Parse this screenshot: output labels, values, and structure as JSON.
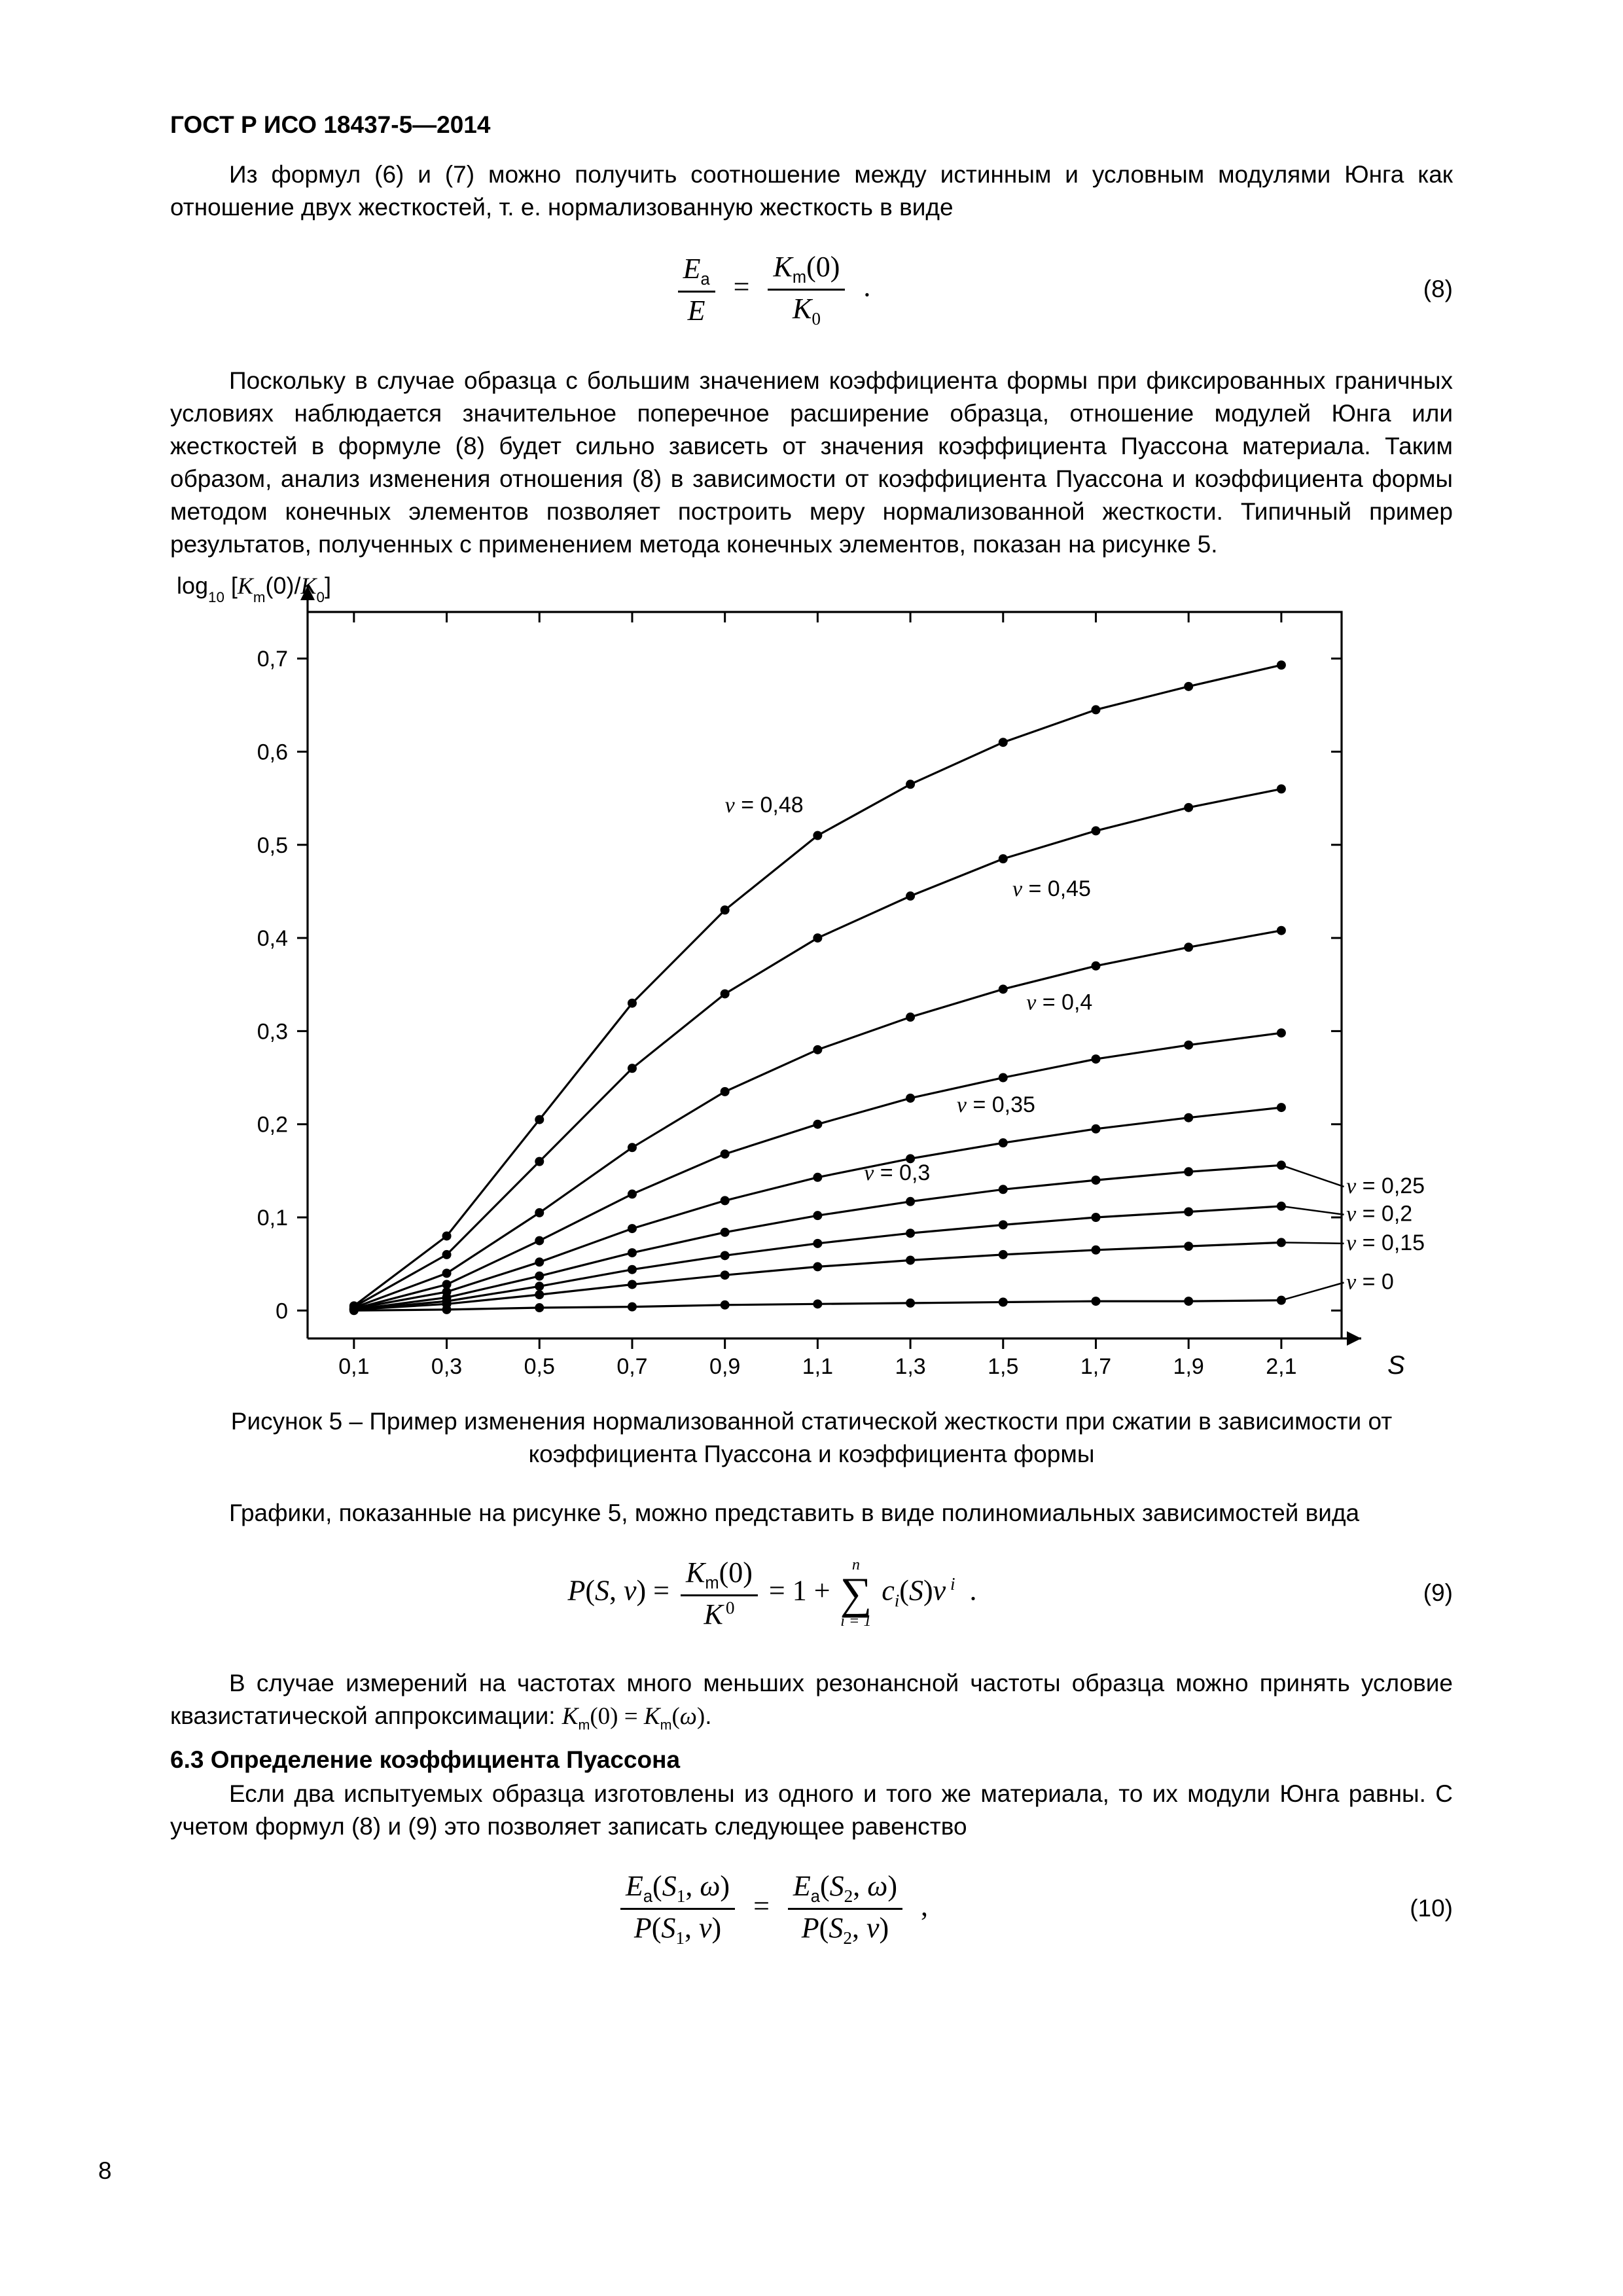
{
  "doc_id": "ГОСТ Р ИСО 18437-5—2014",
  "page_number": "8",
  "paragraphs": {
    "p1": "Из формул (6) и (7) можно получить соотношение между истинным и условным модулями Юнга как отношение двух жесткостей, т. е. нормализованную жесткость в виде",
    "p2": "Поскольку в случае образца с большим значением коэффициента формы при фиксированных граничных условиях наблюдается значительное поперечное расширение образца, отношение модулей Юнга или жесткостей в формуле (8) будет сильно зависеть от значения коэффициента Пуассона материала. Таким образом, анализ изменения отношения (8) в зависимости от коэффициента Пуассона и коэффициента формы методом конечных элементов позволяет построить меру нормализованной жесткости. Типичный пример результатов, полученных с применением метода конечных элементов, показан на рисунке 5.",
    "p3": "Графики, показанные на рисунке 5, можно представить в виде полиномиальных зависимостей вида",
    "p4a": "В случае измерений на частотах много меньших резонансной частоты образца можно принять условие квазистатической аппроксимации: ",
    "p4b": ".",
    "p5": "Если два испытуемых образца изготовлены из одного и того же материала, то их модули Юнга равны. С учетом формул (8) и (9) это позволяет записать следующее равенство"
  },
  "section_63": "6.3 Определение коэффициента Пуассона",
  "equations": {
    "eq8_num": "(8)",
    "eq9_num": "(9)",
    "eq10_num": "(10)"
  },
  "figure": {
    "caption": "Рисунок 5 – Пример изменения нормализованной статической жесткости при сжатии в зависимости от коэффициента Пуассона и коэффициента формы",
    "y_axis_label": "log₁₀ [Kₘ(0)/K₀]",
    "x_axis_label": "S",
    "colors": {
      "bg": "#ffffff",
      "axis": "#000000",
      "line": "#000000",
      "text": "#000000"
    },
    "font_size_ticks": 34,
    "font_size_series": 34,
    "font_size_axis_label": 36,
    "marker_radius": 7,
    "plot": {
      "x_min": 0.0,
      "x_max": 2.23,
      "y_min": -0.03,
      "y_max": 0.75,
      "x_ticks": [
        0.1,
        0.3,
        0.5,
        0.7,
        0.9,
        1.1,
        1.3,
        1.5,
        1.7,
        1.9,
        2.1
      ],
      "y_ticks": [
        0,
        0.1,
        0.2,
        0.3,
        0.4,
        0.5,
        0.6,
        0.7
      ],
      "x_tick_labels": [
        "0,1",
        "0,3",
        "0,5",
        "0,7",
        "0,9",
        "1,1",
        "1,3",
        "1,5",
        "1,7",
        "1,9",
        "2,1"
      ],
      "y_tick_labels": [
        "0",
        "0,1",
        "0,2",
        "0,3",
        "0,4",
        "0,5",
        "0,6",
        "0,7"
      ]
    },
    "series": [
      {
        "nu": "ν = 0,48",
        "label_at": [
          0.9,
          0.535
        ],
        "x": [
          0.1,
          0.3,
          0.5,
          0.7,
          0.9,
          1.1,
          1.3,
          1.5,
          1.7,
          1.9,
          2.1
        ],
        "y": [
          0.005,
          0.08,
          0.205,
          0.33,
          0.43,
          0.51,
          0.565,
          0.61,
          0.645,
          0.67,
          0.693
        ]
      },
      {
        "nu": "ν = 0,45",
        "label_at": [
          1.52,
          0.445
        ],
        "x": [
          0.1,
          0.3,
          0.5,
          0.7,
          0.9,
          1.1,
          1.3,
          1.5,
          1.7,
          1.9,
          2.1
        ],
        "y": [
          0.004,
          0.06,
          0.16,
          0.26,
          0.34,
          0.4,
          0.445,
          0.485,
          0.515,
          0.54,
          0.56
        ]
      },
      {
        "nu": "ν = 0,4",
        "label_at": [
          1.55,
          0.323
        ],
        "x": [
          0.1,
          0.3,
          0.5,
          0.7,
          0.9,
          1.1,
          1.3,
          1.5,
          1.7,
          1.9,
          2.1
        ],
        "y": [
          0.003,
          0.04,
          0.105,
          0.175,
          0.235,
          0.28,
          0.315,
          0.345,
          0.37,
          0.39,
          0.408
        ]
      },
      {
        "nu": "ν = 0,35",
        "label_at": [
          1.4,
          0.213
        ],
        "x": [
          0.1,
          0.3,
          0.5,
          0.7,
          0.9,
          1.1,
          1.3,
          1.5,
          1.7,
          1.9,
          2.1
        ],
        "y": [
          0.002,
          0.028,
          0.075,
          0.125,
          0.168,
          0.2,
          0.228,
          0.25,
          0.27,
          0.285,
          0.298
        ]
      },
      {
        "nu": "ν = 0,3",
        "label_at": [
          1.2,
          0.14
        ],
        "x": [
          0.1,
          0.3,
          0.5,
          0.7,
          0.9,
          1.1,
          1.3,
          1.5,
          1.7,
          1.9,
          2.1
        ],
        "y": [
          0.002,
          0.02,
          0.052,
          0.088,
          0.118,
          0.143,
          0.163,
          0.18,
          0.195,
          0.207,
          0.218
        ]
      },
      {
        "nu": "ν = 0,25",
        "label_at": [
          2.24,
          0.133
        ],
        "label_right": true,
        "x": [
          0.1,
          0.3,
          0.5,
          0.7,
          0.9,
          1.1,
          1.3,
          1.5,
          1.7,
          1.9,
          2.1
        ],
        "y": [
          0.001,
          0.014,
          0.037,
          0.062,
          0.084,
          0.102,
          0.117,
          0.13,
          0.14,
          0.149,
          0.156
        ]
      },
      {
        "nu": "ν = 0,2",
        "label_at": [
          2.24,
          0.103
        ],
        "label_right": true,
        "x": [
          0.1,
          0.3,
          0.5,
          0.7,
          0.9,
          1.1,
          1.3,
          1.5,
          1.7,
          1.9,
          2.1
        ],
        "y": [
          0.001,
          0.01,
          0.026,
          0.044,
          0.059,
          0.072,
          0.083,
          0.092,
          0.1,
          0.106,
          0.112
        ]
      },
      {
        "nu": "ν = 0,15",
        "label_at": [
          2.24,
          0.072
        ],
        "label_right": true,
        "x": [
          0.1,
          0.3,
          0.5,
          0.7,
          0.9,
          1.1,
          1.3,
          1.5,
          1.7,
          1.9,
          2.1
        ],
        "y": [
          0.001,
          0.007,
          0.017,
          0.028,
          0.038,
          0.047,
          0.054,
          0.06,
          0.065,
          0.069,
          0.073
        ]
      },
      {
        "nu": "ν = 0",
        "label_at": [
          2.24,
          0.03
        ],
        "label_right": true,
        "x": [
          0.1,
          0.3,
          0.5,
          0.7,
          0.9,
          1.1,
          1.3,
          1.5,
          1.7,
          1.9,
          2.1
        ],
        "y": [
          0.0,
          0.001,
          0.003,
          0.004,
          0.006,
          0.007,
          0.008,
          0.009,
          0.01,
          0.01,
          0.011
        ]
      }
    ],
    "right_leaders": [
      {
        "to_x": 2.1,
        "to_y": 0.156,
        "from_x": 2.235,
        "from_y": 0.133
      },
      {
        "to_x": 2.1,
        "to_y": 0.112,
        "from_x": 2.235,
        "from_y": 0.103
      },
      {
        "to_x": 2.1,
        "to_y": 0.073,
        "from_x": 2.235,
        "from_y": 0.072
      },
      {
        "to_x": 2.1,
        "to_y": 0.011,
        "from_x": 2.235,
        "from_y": 0.03
      }
    ]
  }
}
